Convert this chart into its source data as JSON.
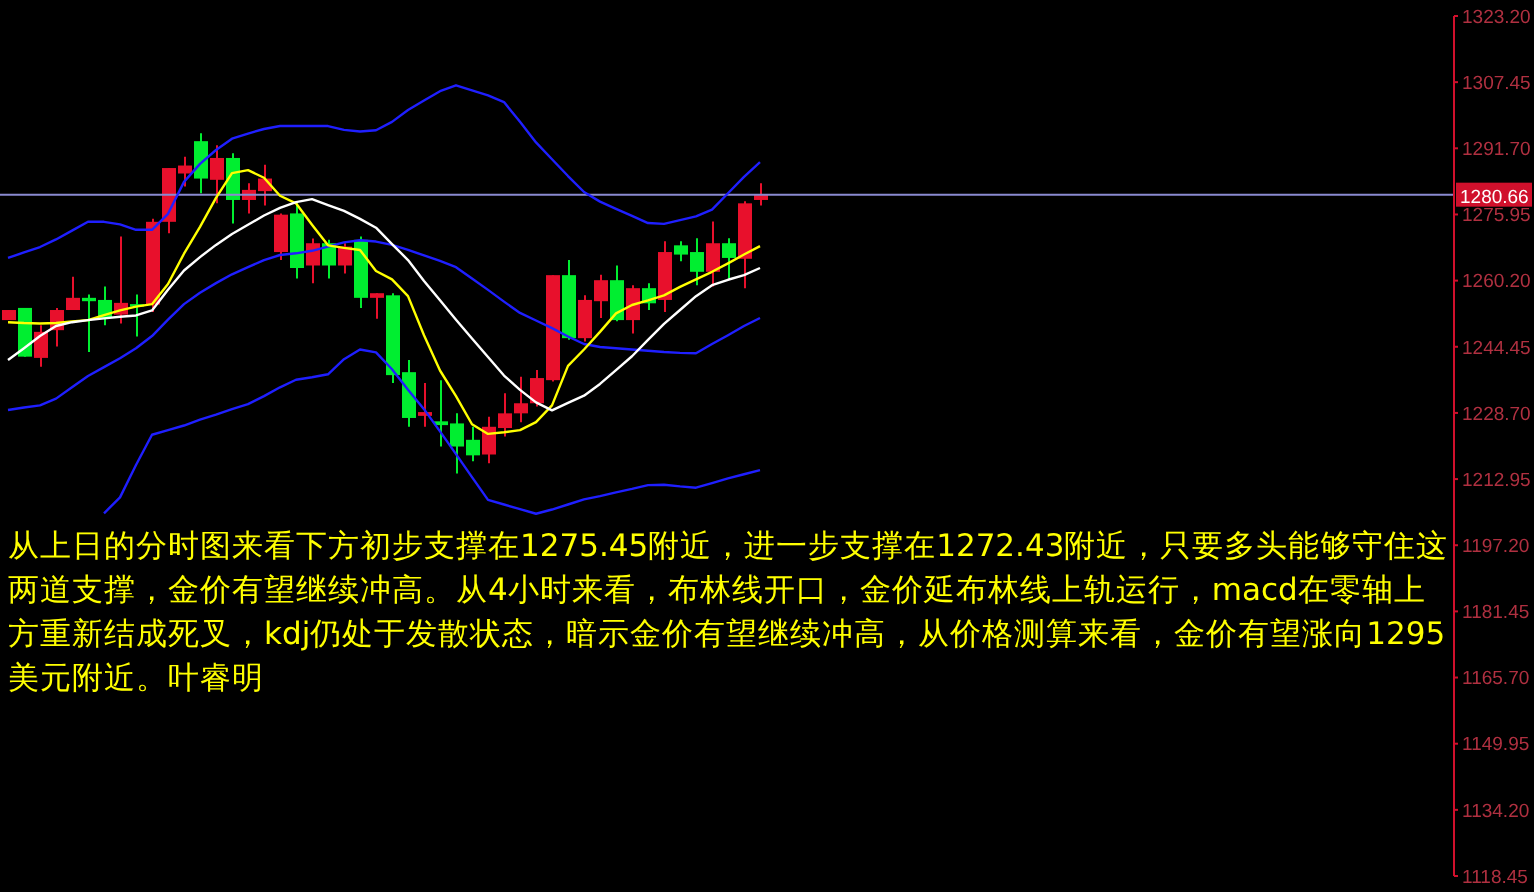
{
  "chart_data": {
    "type": "candlestick",
    "categories": [
      null,
      null,
      null,
      null,
      null,
      null,
      null,
      null,
      null,
      null,
      null,
      null,
      null,
      null,
      null,
      null,
      null,
      null,
      null,
      null,
      null,
      null,
      null,
      null,
      null,
      null,
      null,
      null,
      null,
      null,
      null,
      null,
      null,
      null,
      null,
      null,
      null,
      null,
      null,
      null,
      null,
      null,
      null,
      null,
      null,
      null,
      null,
      null
    ],
    "ohlc": [
      [
        1250.8,
        1253.2,
        1250.8,
        1253.2
      ],
      [
        1253.7,
        1253.7,
        1242.1,
        1242.1
      ],
      [
        1241.8,
        1249.6,
        1239.7,
        1248.0
      ],
      [
        1248.4,
        1253.7,
        1244.5,
        1253.2
      ],
      [
        1253.2,
        1261.1,
        1253.2,
        1256.1
      ],
      [
        1256.1,
        1256.9,
        1243.2,
        1255.3
      ],
      [
        1255.6,
        1258.8,
        1249.6,
        1251.3
      ],
      [
        1252.1,
        1270.7,
        1250.0,
        1254.9
      ],
      [
        1254.6,
        1256.9,
        1246.9,
        1254.0
      ],
      [
        1254.5,
        1274.9,
        1252.7,
        1274.2
      ],
      [
        1274.2,
        1287.0,
        1271.5,
        1287.0
      ],
      [
        1285.7,
        1289.7,
        1282.6,
        1287.6
      ],
      [
        1293.4,
        1295.3,
        1281.0,
        1284.5
      ],
      [
        1284.2,
        1292.4,
        1278.6,
        1289.4
      ],
      [
        1289.4,
        1290.5,
        1273.8,
        1279.4
      ],
      [
        1279.4,
        1283.4,
        1276.2,
        1281.8
      ],
      [
        1281.5,
        1287.8,
        1278.1,
        1284.5
      ],
      [
        1267.0,
        1276.2,
        1265.1,
        1275.9
      ],
      [
        1276.2,
        1278.6,
        1260.7,
        1263.2
      ],
      [
        1263.8,
        1270.2,
        1259.6,
        1269.1
      ],
      [
        1269.1,
        1269.9,
        1260.7,
        1263.8
      ],
      [
        1263.8,
        1269.1,
        1261.9,
        1268.3
      ],
      [
        1269.9,
        1270.7,
        1253.7,
        1256.1
      ],
      [
        1256.1,
        1257.2,
        1251.1,
        1257.2
      ],
      [
        1256.7,
        1257.2,
        1235.8,
        1237.7
      ],
      [
        1238.4,
        1241.3,
        1225.4,
        1227.5
      ],
      [
        1228.0,
        1235.8,
        1225.4,
        1228.9
      ],
      [
        1226.7,
        1236.5,
        1220.7,
        1225.8
      ],
      [
        1226.2,
        1228.6,
        1214.3,
        1220.7
      ],
      [
        1222.3,
        1225.4,
        1217.2,
        1218.6
      ],
      [
        1218.8,
        1227.8,
        1216.7,
        1225.4
      ],
      [
        1225.1,
        1233.4,
        1223.1,
        1228.6
      ],
      [
        1228.6,
        1237.3,
        1226.5,
        1231.0
      ],
      [
        1231.0,
        1238.9,
        1230.2,
        1237.0
      ],
      [
        1236.5,
        1261.5,
        1236.2,
        1261.5
      ],
      [
        1261.5,
        1265.1,
        1246.1,
        1246.5
      ],
      [
        1246.5,
        1256.7,
        1245.7,
        1255.6
      ],
      [
        1255.3,
        1261.6,
        1251.3,
        1260.3
      ],
      [
        1260.3,
        1263.8,
        1250.5,
        1250.8
      ],
      [
        1250.8,
        1259.1,
        1247.6,
        1258.4
      ],
      [
        1258.4,
        1259.6,
        1253.2,
        1254.8
      ],
      [
        1255.6,
        1269.6,
        1252.7,
        1267.0
      ],
      [
        1268.6,
        1269.6,
        1264.8,
        1266.4
      ],
      [
        1267.0,
        1270.3,
        1259.1,
        1262.3
      ],
      [
        1262.3,
        1274.3,
        1258.8,
        1269.1
      ],
      [
        1269.1,
        1270.3,
        1260.7,
        1265.6
      ],
      [
        1265.4,
        1279.1,
        1258.4,
        1278.6
      ],
      [
        1279.4,
        1283.4,
        1278.1,
        1280.7
      ]
    ],
    "colors": [
      "#e8102c",
      "#00ee30",
      "#e8102c",
      "#e8102c",
      "#e8102c",
      "#00ee30",
      "#00ee30",
      "#e8102c",
      "#00ee30",
      "#e8102c",
      "#e8102c",
      "#e8102c",
      "#00ee30",
      "#e8102c",
      "#00ee30",
      "#e8102c",
      "#e8102c",
      "#e8102c",
      "#00ee30",
      "#e8102c",
      "#00ee30",
      "#e8102c",
      "#00ee30",
      "#e8102c",
      "#00ee30",
      "#00ee30",
      "#e8102c",
      "#00ee30",
      "#00ee30",
      "#00ee30",
      "#e8102c",
      "#e8102c",
      "#e8102c",
      "#e8102c",
      "#e8102c",
      "#00ee30",
      "#e8102c",
      "#e8102c",
      "#00ee30",
      "#e8102c",
      "#00ee30",
      "#e8102c",
      "#00ee30",
      "#00ee30",
      "#e8102c",
      "#00ee30",
      "#e8102c",
      "#e8102c"
    ],
    "series": [
      {
        "type": "line",
        "color": "#1f1fff",
        "values": [
          1265.6,
          1266.9,
          1268.2,
          1270.0,
          1272.1,
          1274.2,
          1274.2,
          1273.6,
          1272.3,
          1272.3,
          1276.1,
          1283.7,
          1288.0,
          1291.3,
          1294.0,
          1295.2,
          1296.3,
          1297.0,
          1297.0,
          1297.0,
          1297.0,
          1296.1,
          1295.7,
          1296.0,
          1298.0,
          1300.8,
          1303.1,
          1305.3,
          1306.7,
          1305.5,
          1304.3,
          1302.7,
          1298.0,
          1293.1,
          1289.1,
          1285.1,
          1281.3,
          1279.0,
          1277.3,
          1275.6,
          1273.9,
          1273.7,
          1274.6,
          1275.5,
          1277.1,
          1281.0,
          1284.9,
          1288.4
        ]
      },
      {
        "type": "line",
        "color": "#1f1fff",
        "values": [
          1229.4,
          1230.0,
          1230.5,
          1232.1,
          1234.8,
          1237.5,
          1239.6,
          1241.7,
          1244.1,
          1247.0,
          1250.9,
          1254.6,
          1257.3,
          1259.6,
          1261.7,
          1263.4,
          1265.1,
          1266.3,
          1266.7,
          1267.3,
          1268.3,
          1269.3,
          1269.8,
          1269.5,
          1268.7,
          1267.5,
          1266.2,
          1264.9,
          1263.4,
          1260.7,
          1258.0,
          1255.2,
          1252.5,
          1250.7,
          1248.9,
          1246.9,
          1245.1,
          1244.4,
          1244.1,
          1243.8,
          1243.5,
          1243.2,
          1243.0,
          1242.9,
          1245.1,
          1247.2,
          1249.4,
          1251.3
        ]
      },
      {
        "type": "line",
        "color": "#1f1fff",
        "values": [
          null,
          null,
          null,
          null,
          null,
          null,
          1204.8,
          1208.6,
          1216.3,
          1223.5,
          1224.6,
          1225.7,
          1227.1,
          1228.3,
          1229.6,
          1230.8,
          1232.7,
          1234.8,
          1236.6,
          1237.2,
          1237.9,
          1241.5,
          1243.8,
          1243.1,
          1239.1,
          1234.2,
          1229.6,
          1224.3,
          1218.9,
          1213.4,
          1208.0,
          1206.9,
          1205.8,
          1204.7,
          1205.7,
          1206.9,
          1208.1,
          1208.9,
          1209.8,
          1210.6,
          1211.5,
          1211.6,
          1211.2,
          1210.9,
          1212.0,
          1213.1,
          1214.1,
          1215.1
        ]
      },
      {
        "type": "line",
        "color": "#ffff00",
        "values": [
          1250.3,
          1250.1,
          1250.0,
          1250.1,
          1250.5,
          1250.8,
          1252.0,
          1253.1,
          1254.0,
          1254.6,
          1259.4,
          1266.6,
          1273.0,
          1279.9,
          1285.8,
          1286.5,
          1284.7,
          1280.4,
          1278.6,
          1273.5,
          1268.6,
          1268.0,
          1267.5,
          1262.5,
          1260.5,
          1256.5,
          1247.2,
          1238.8,
          1232.7,
          1226.0,
          1223.7,
          1224.1,
          1224.6,
          1226.5,
          1230.5,
          1239.9,
          1243.8,
          1248.0,
          1252.4,
          1254.4,
          1255.5,
          1256.7,
          1258.7,
          1260.5,
          1262.3,
          1264.3,
          1266.4,
          1268.4
        ]
      },
      {
        "type": "line",
        "color": "#ffffff",
        "values": [
          1241.3,
          1244.1,
          1247.0,
          1249.4,
          1250.3,
          1250.8,
          1251.2,
          1251.6,
          1251.9,
          1253.1,
          1258.0,
          1262.6,
          1265.8,
          1268.7,
          1271.3,
          1273.5,
          1275.7,
          1277.5,
          1278.9,
          1279.6,
          1278.2,
          1276.8,
          1274.9,
          1272.8,
          1268.9,
          1265.1,
          1260.1,
          1255.5,
          1250.9,
          1246.4,
          1242.0,
          1237.6,
          1234.2,
          1231.2,
          1229.3,
          1231.1,
          1232.8,
          1235.6,
          1238.9,
          1242.2,
          1246.1,
          1249.9,
          1253.2,
          1256.5,
          1259.1,
          1260.4,
          1261.5,
          1263.2
        ]
      }
    ],
    "ylim": [
      1118.45,
      1323.2
    ],
    "yticks": [
      {
        "value": 1323.2,
        "label": "1323.20"
      },
      {
        "value": 1307.45,
        "label": "1307.45"
      },
      {
        "value": 1291.7,
        "label": "1291.70"
      },
      {
        "value": 1275.95,
        "label": "1275.95"
      },
      {
        "value": 1260.2,
        "label": "1260.20"
      },
      {
        "value": 1244.45,
        "label": "1244.45"
      },
      {
        "value": 1228.7,
        "label": "1228.70"
      },
      {
        "value": 1212.95,
        "label": "1212.95"
      },
      {
        "value": 1197.2,
        "label": "1197.20"
      },
      {
        "value": 1181.45,
        "label": "1181.45"
      },
      {
        "value": 1165.7,
        "label": "1165.70"
      },
      {
        "value": 1149.95,
        "label": "1149.95"
      },
      {
        "value": 1134.2,
        "label": "1134.20"
      },
      {
        "value": 1118.45,
        "label": "1118.45"
      }
    ],
    "tick_labels": "y",
    "ref_lines": [
      {
        "axis": "y",
        "value": 1280.66,
        "label": "1280.66",
        "color": "#8a8ad0"
      }
    ],
    "annotations": [
      "从上日的分时图来看下方初步支撑在1275.45附近，进一步支撑在1272.43附近，只要多头能够守住这两道支撑，金价有望继续冲高。从4小时来看，布林线开口，金价延布林线上轨运行，macd在零轴上方重新结成死叉，kdj仍处于发散状态，暗示金价有望继续冲高，从价格测算来看，金价有望涨向1295美元附近。叶睿明"
    ]
  }
}
